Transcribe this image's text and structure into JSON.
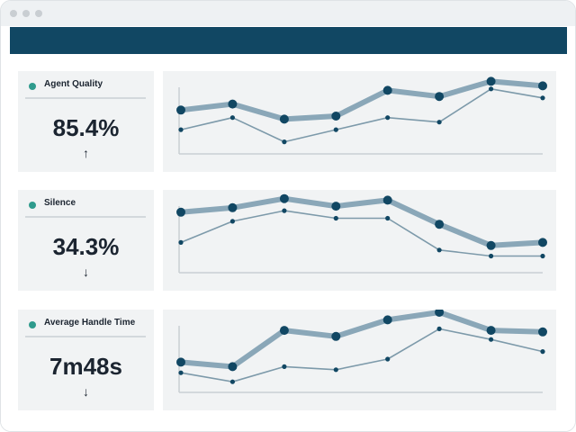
{
  "window": {
    "dot_color": "#c9ced2",
    "header_color": "#114763"
  },
  "colors": {
    "accent": "#2f9b8d",
    "primary_line": "#8aa7b8",
    "primary_point": "#114763",
    "secondary_line": "#7d9aaa",
    "secondary_point": "#114763"
  },
  "metrics": [
    {
      "label": "Agent Quality",
      "value": "85.4%",
      "trend": "↑",
      "trend_icon": "arrow-up-icon",
      "chart_data": {
        "type": "line",
        "x": [
          0,
          1,
          2,
          3,
          4,
          5,
          6,
          7
        ],
        "ylim": [
          0,
          100
        ],
        "series": [
          {
            "values": [
              58,
              66,
              46,
              50,
              84,
              76,
              96,
              90
            ]
          },
          {
            "values": [
              32,
              48,
              16,
              32,
              48,
              42,
              86,
              74
            ]
          }
        ]
      }
    },
    {
      "label": "Silence",
      "value": "34.3%",
      "trend": "↓",
      "trend_icon": "arrow-down-icon",
      "chart_data": {
        "type": "line",
        "x": [
          0,
          1,
          2,
          3,
          4,
          5,
          6,
          7
        ],
        "ylim": [
          0,
          100
        ],
        "series": [
          {
            "values": [
              80,
              86,
              98,
              88,
              96,
              64,
              36,
              40
            ]
          },
          {
            "values": [
              40,
              68,
              82,
              72,
              72,
              30,
              22,
              22
            ]
          }
        ]
      }
    },
    {
      "label": "Average Handle Time",
      "value": "7m48s",
      "trend": "↓",
      "trend_icon": "arrow-down-icon",
      "chart_data": {
        "type": "line",
        "x": [
          0,
          1,
          2,
          3,
          4,
          5,
          6,
          7
        ],
        "ylim": [
          0,
          100
        ],
        "series": [
          {
            "values": [
              40,
              34,
              82,
              74,
              96,
              106,
              82,
              80
            ]
          },
          {
            "values": [
              26,
              14,
              34,
              30,
              44,
              84,
              70,
              54
            ]
          }
        ]
      }
    }
  ]
}
